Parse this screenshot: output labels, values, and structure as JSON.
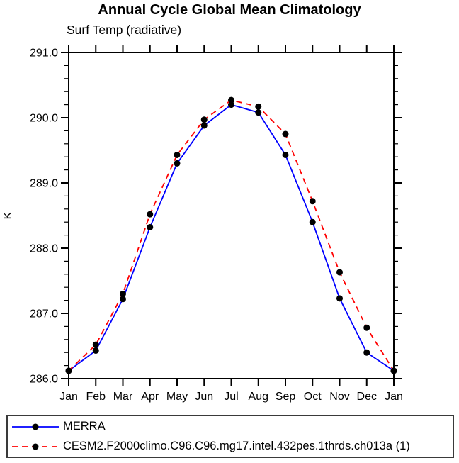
{
  "chart_data": {
    "type": "line",
    "title": "Annual Cycle Global Mean Climatology",
    "subtitle": "Surf Temp (radiative)",
    "xlabel": "",
    "ylabel": "K",
    "categories": [
      "Jan",
      "Feb",
      "Mar",
      "Apr",
      "May",
      "Jun",
      "Jul",
      "Aug",
      "Sep",
      "Oct",
      "Nov",
      "Dec",
      "Jan"
    ],
    "ylim": [
      286.0,
      291.0
    ],
    "ytick_major": [
      286.0,
      287.0,
      288.0,
      289.0,
      290.0,
      291.0
    ],
    "ytick_labels": [
      "286.0",
      "287.0",
      "288.0",
      "289.0",
      "290.0",
      "291.0"
    ],
    "ytick_minor_step": 0.2,
    "grid": false,
    "legend_position": "bottom",
    "marker": "filled-circle",
    "marker_color": "#000000",
    "axis_color": "#000000",
    "series": [
      {
        "name": "MERRA",
        "color": "#0000ff",
        "style": "solid",
        "values": [
          286.12,
          286.43,
          287.22,
          288.32,
          289.3,
          289.88,
          290.2,
          290.08,
          289.43,
          288.4,
          287.23,
          286.4,
          286.12
        ]
      },
      {
        "name": "CESM2.F2000climo.C96.C96.mg17.intel.432pes.1thrds.ch013a (1)",
        "color": "#ff0000",
        "style": "dashed",
        "values": [
          286.12,
          286.52,
          287.3,
          288.52,
          289.43,
          289.97,
          290.27,
          290.17,
          289.75,
          288.72,
          287.63,
          286.78,
          286.12
        ]
      }
    ]
  }
}
